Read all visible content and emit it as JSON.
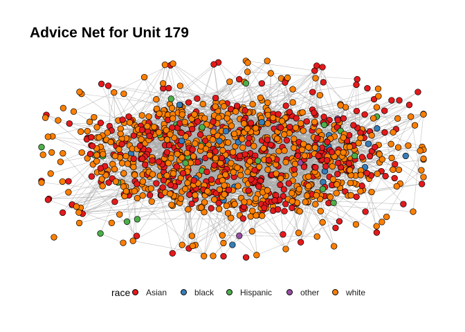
{
  "title": "Advice Net for Unit 179",
  "legend": {
    "title": "race",
    "items": [
      {
        "label": "Asian",
        "color": "#E41A1C"
      },
      {
        "label": "black",
        "color": "#377EB8"
      },
      {
        "label": "Hispanic",
        "color": "#4DAF4A"
      },
      {
        "label": "other",
        "color": "#984EA3"
      },
      {
        "label": "white",
        "color": "#FF7F00"
      }
    ]
  },
  "network": {
    "node_stroke": "#000000",
    "edge_color": "#AAAAAA",
    "composition": {
      "Asian": 0.36,
      "black": 0.02,
      "Hispanic": 0.025,
      "other": 0.005,
      "white": 0.59
    }
  }
}
